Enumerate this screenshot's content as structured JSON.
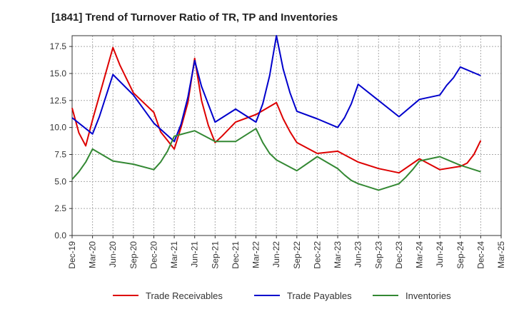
{
  "chart_data": {
    "type": "line",
    "title": "[1841]  Trend of Turnover Ratio of TR, TP and Inventories",
    "xlabel": "",
    "ylabel": "",
    "x": [
      "Dec-19",
      "Jan-20",
      "Feb-20",
      "Mar-20",
      "Apr-20",
      "May-20",
      "Jun-20",
      "Jul-20",
      "Aug-20",
      "Sep-20",
      "Oct-20",
      "Nov-20",
      "Dec-20",
      "Jan-21",
      "Feb-21",
      "Mar-21",
      "Apr-21",
      "May-21",
      "Jun-21",
      "Jul-21",
      "Aug-21",
      "Sep-21",
      "Oct-21",
      "Nov-21",
      "Dec-21",
      "Jan-22",
      "Feb-22",
      "Mar-22",
      "Apr-22",
      "May-22",
      "Jun-22",
      "Jul-22",
      "Aug-22",
      "Sep-22",
      "Oct-22",
      "Nov-22",
      "Dec-22",
      "Jan-23",
      "Feb-23",
      "Mar-23",
      "Apr-23",
      "May-23",
      "Jun-23",
      "Jul-23",
      "Aug-23",
      "Sep-23",
      "Oct-23",
      "Nov-23",
      "Dec-23",
      "Jan-24",
      "Feb-24",
      "Mar-24",
      "Apr-24",
      "May-24",
      "Jun-24",
      "Jul-24",
      "Aug-24",
      "Sep-24",
      "Oct-24",
      "Nov-24",
      "Dec-24",
      "Jan-25",
      "Feb-25",
      "Mar-25"
    ],
    "x_tick_labels": [
      "Dec-19",
      "Mar-20",
      "Jun-20",
      "Sep-20",
      "Dec-20",
      "Mar-21",
      "Jun-21",
      "Sep-21",
      "Dec-21",
      "Mar-22",
      "Jun-22",
      "Sep-22",
      "Dec-22",
      "Mar-23",
      "Jun-23",
      "Sep-23",
      "Dec-23",
      "Mar-24",
      "Jun-24",
      "Sep-24",
      "Dec-24",
      "Mar-25"
    ],
    "ylim": [
      0,
      18.5
    ],
    "yticks": [
      0.0,
      2.5,
      5.0,
      7.5,
      10.0,
      12.5,
      15.0,
      17.5
    ],
    "ytick_labels": [
      "0.0",
      "2.5",
      "5.0",
      "7.5",
      "10.0",
      "12.5",
      "15.0",
      "17.5"
    ],
    "grid": true,
    "legend_position": "bottom",
    "series": [
      {
        "name": "Trade Receivables",
        "color": "#dd0000",
        "points": [
          [
            "Dec-19",
            11.8
          ],
          [
            "Jan-20",
            9.5
          ],
          [
            "Feb-20",
            8.3
          ],
          [
            "Mar-20",
            10.7
          ],
          [
            "Jun-20",
            17.4
          ],
          [
            "Jul-20",
            15.8
          ],
          [
            "Sep-20",
            13.2
          ],
          [
            "Dec-20",
            11.4
          ],
          [
            "Jan-21",
            9.6
          ],
          [
            "Feb-21",
            8.8
          ],
          [
            "Mar-21",
            8.0
          ],
          [
            "Apr-21",
            10.0
          ],
          [
            "May-21",
            12.3
          ],
          [
            "Jun-21",
            16.4
          ],
          [
            "Jul-21",
            12.5
          ],
          [
            "Aug-21",
            10.2
          ],
          [
            "Sep-21",
            8.6
          ],
          [
            "Oct-21",
            9.2
          ],
          [
            "Dec-21",
            10.5
          ],
          [
            "Mar-22",
            11.2
          ],
          [
            "Jun-22",
            12.3
          ],
          [
            "Jul-22",
            10.8
          ],
          [
            "Aug-22",
            9.6
          ],
          [
            "Sep-22",
            8.6
          ],
          [
            "Dec-22",
            7.6
          ],
          [
            "Mar-23",
            7.8
          ],
          [
            "Jun-23",
            6.8
          ],
          [
            "Sep-23",
            6.2
          ],
          [
            "Dec-23",
            5.8
          ],
          [
            "Mar-24",
            7.1
          ],
          [
            "Jun-24",
            6.1
          ],
          [
            "Sep-24",
            6.4
          ],
          [
            "Oct-24",
            6.7
          ],
          [
            "Nov-24",
            7.5
          ],
          [
            "Dec-24",
            8.8
          ]
        ]
      },
      {
        "name": "Trade Payables",
        "color": "#0000cc",
        "points": [
          [
            "Dec-19",
            10.9
          ],
          [
            "Mar-20",
            9.4
          ],
          [
            "Apr-20",
            11.0
          ],
          [
            "Jun-20",
            14.9
          ],
          [
            "Sep-20",
            13.0
          ],
          [
            "Dec-20",
            10.4
          ],
          [
            "Mar-21",
            8.7
          ],
          [
            "Apr-21",
            10.3
          ],
          [
            "May-21",
            12.8
          ],
          [
            "Jun-21",
            16.2
          ],
          [
            "Jul-21",
            13.8
          ],
          [
            "Sep-21",
            10.5
          ],
          [
            "Dec-21",
            11.7
          ],
          [
            "Mar-22",
            10.5
          ],
          [
            "Apr-22",
            12.2
          ],
          [
            "May-22",
            14.8
          ],
          [
            "Jun-22",
            18.5
          ],
          [
            "Jul-22",
            15.4
          ],
          [
            "Aug-22",
            13.2
          ],
          [
            "Sep-22",
            11.5
          ],
          [
            "Dec-22",
            10.8
          ],
          [
            "Mar-23",
            10.0
          ],
          [
            "Apr-23",
            10.9
          ],
          [
            "May-23",
            12.2
          ],
          [
            "Jun-23",
            14.0
          ],
          [
            "Sep-23",
            12.5
          ],
          [
            "Dec-23",
            11.0
          ],
          [
            "Mar-24",
            12.6
          ],
          [
            "Jun-24",
            13.0
          ],
          [
            "Jul-24",
            13.9
          ],
          [
            "Aug-24",
            14.6
          ],
          [
            "Sep-24",
            15.6
          ],
          [
            "Dec-24",
            14.8
          ]
        ]
      },
      {
        "name": "Inventories",
        "color": "#338833",
        "points": [
          [
            "Dec-19",
            5.2
          ],
          [
            "Jan-20",
            5.9
          ],
          [
            "Feb-20",
            6.8
          ],
          [
            "Mar-20",
            8.0
          ],
          [
            "Jun-20",
            6.9
          ],
          [
            "Sep-20",
            6.6
          ],
          [
            "Dec-20",
            6.1
          ],
          [
            "Jan-21",
            6.8
          ],
          [
            "Feb-21",
            7.8
          ],
          [
            "Mar-21",
            9.2
          ],
          [
            "Jun-21",
            9.7
          ],
          [
            "Sep-21",
            8.7
          ],
          [
            "Dec-21",
            8.7
          ],
          [
            "Mar-22",
            9.9
          ],
          [
            "Apr-22",
            8.6
          ],
          [
            "May-22",
            7.6
          ],
          [
            "Jun-22",
            7.0
          ],
          [
            "Sep-22",
            6.0
          ],
          [
            "Dec-22",
            7.3
          ],
          [
            "Mar-23",
            6.2
          ],
          [
            "Apr-23",
            5.6
          ],
          [
            "May-23",
            5.1
          ],
          [
            "Jun-23",
            4.8
          ],
          [
            "Sep-23",
            4.2
          ],
          [
            "Dec-23",
            4.8
          ],
          [
            "Jan-24",
            5.4
          ],
          [
            "Feb-24",
            6.1
          ],
          [
            "Mar-24",
            6.9
          ],
          [
            "Jun-24",
            7.3
          ],
          [
            "Sep-24",
            6.5
          ],
          [
            "Dec-24",
            5.9
          ]
        ]
      }
    ]
  }
}
